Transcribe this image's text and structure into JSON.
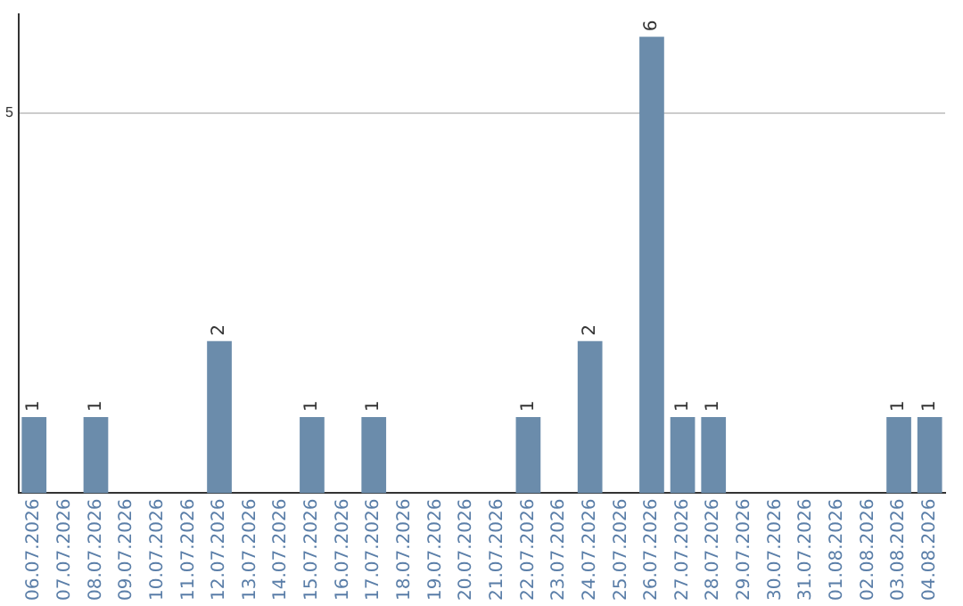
{
  "chart_data": {
    "type": "bar",
    "categories": [
      "06.07.2026",
      "07.07.2026",
      "08.07.2026",
      "09.07.2026",
      "10.07.2026",
      "11.07.2026",
      "12.07.2026",
      "13.07.2026",
      "14.07.2026",
      "15.07.2026",
      "16.07.2026",
      "17.07.2026",
      "18.07.2026",
      "19.07.2026",
      "20.07.2026",
      "21.07.2026",
      "22.07.2026",
      "23.07.2026",
      "24.07.2026",
      "25.07.2026",
      "26.07.2026",
      "27.07.2026",
      "28.07.2026",
      "29.07.2026",
      "30.07.2026",
      "31.07.2026",
      "01.08.2026",
      "02.08.2026",
      "03.08.2026",
      "04.08.2026"
    ],
    "values": [
      1,
      0,
      1,
      0,
      0,
      0,
      2,
      0,
      0,
      1,
      0,
      1,
      0,
      0,
      0,
      0,
      1,
      0,
      2,
      0,
      6,
      1,
      1,
      0,
      0,
      0,
      0,
      0,
      1,
      1
    ],
    "value_labels": [
      "1",
      null,
      "1",
      null,
      null,
      null,
      "2",
      null,
      null,
      "1",
      null,
      "1",
      null,
      null,
      null,
      null,
      "1",
      null,
      "2",
      null,
      "6",
      "1",
      "1",
      null,
      null,
      null,
      null,
      null,
      "1",
      "1"
    ],
    "color": "#6b8cab",
    "ylim": [
      0,
      6.3
    ],
    "yticks": [
      5
    ],
    "grid": "y",
    "legend": false
  }
}
